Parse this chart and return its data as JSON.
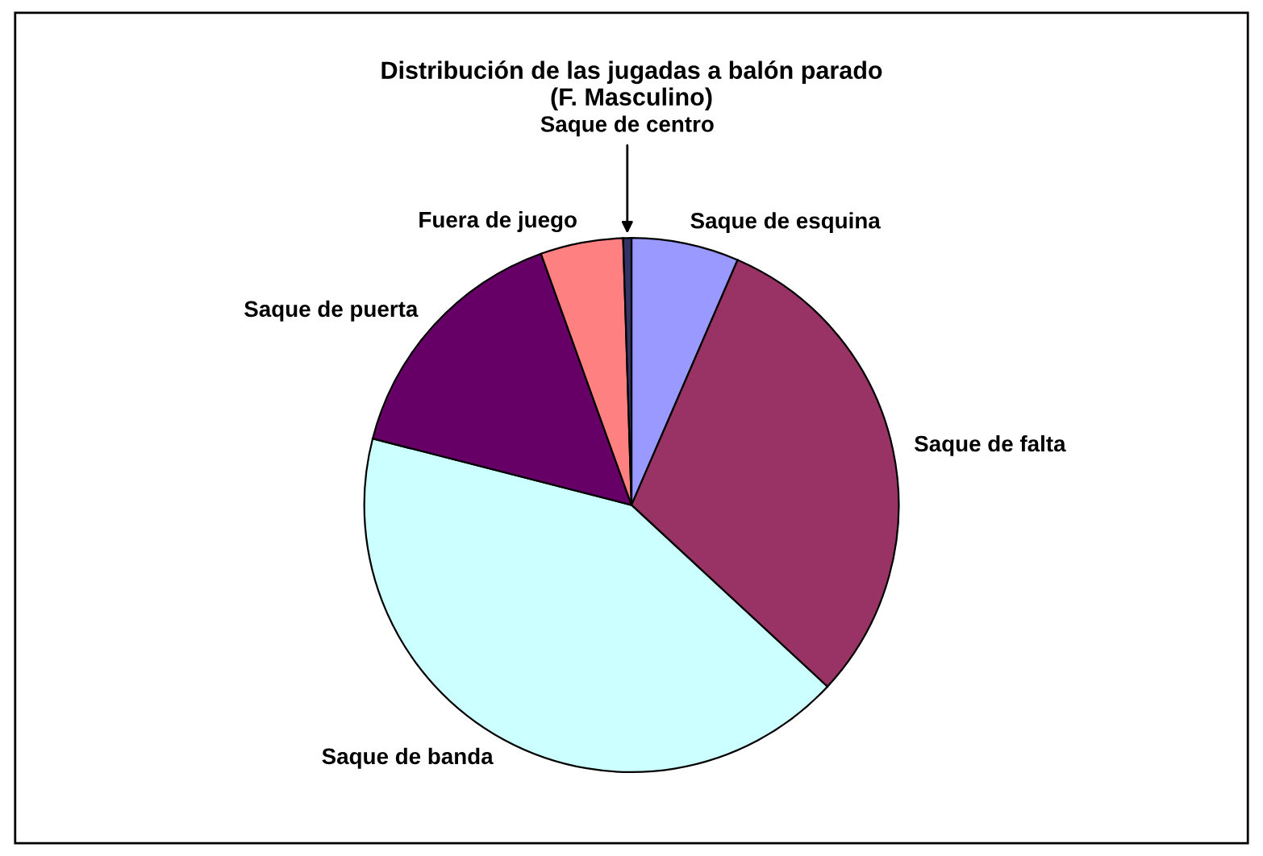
{
  "chart_data": {
    "type": "pie",
    "title": "Distribución de las jugadas a balón parado\n(F. Masculino)",
    "categories": [
      "Saque de esquina",
      "Saque de falta",
      "Saque de banda",
      "Saque de puerta",
      "Fuera de juego",
      "Saque de centro"
    ],
    "values": [
      6.5,
      30.4,
      42.1,
      15.5,
      5.0,
      0.5
    ],
    "colors": [
      "#9999ff",
      "#993366",
      "#ccffff",
      "#660066",
      "#ff8080",
      "#333366"
    ],
    "legend": false
  }
}
